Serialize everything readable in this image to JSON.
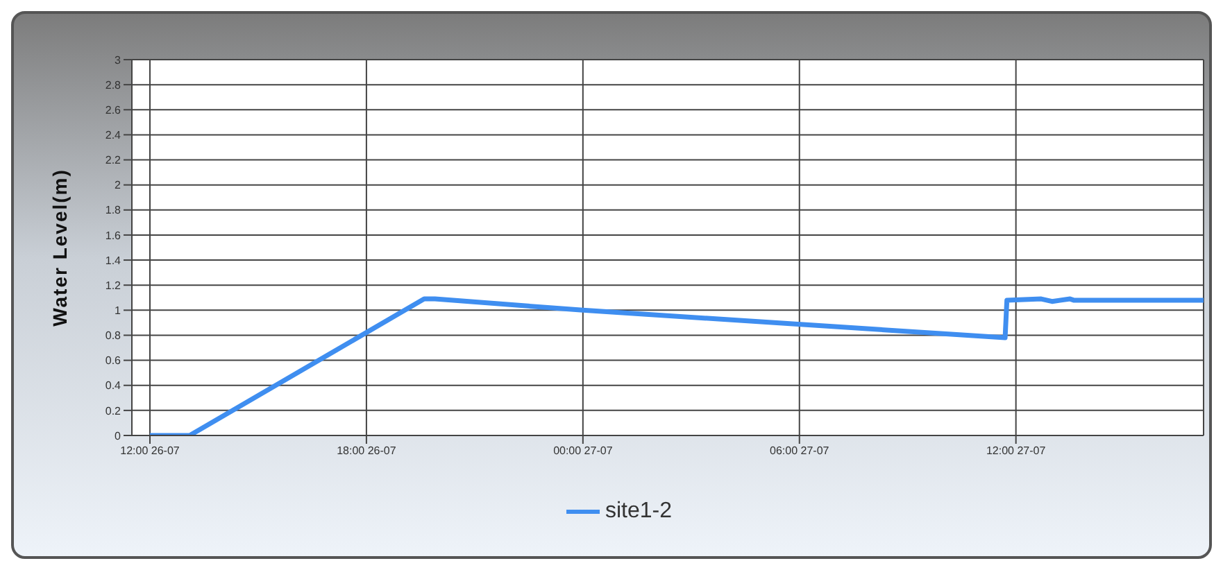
{
  "chart_data": {
    "type": "line",
    "ylabel": "Water Level(m)",
    "xlim": [
      "--07-26T11:30",
      "--07-27T17:12"
    ],
    "xticks": [
      {
        "value": "--07-26T12:00",
        "label": "12:00 26-07"
      },
      {
        "value": "--07-26T18:00",
        "label": "18:00 26-07"
      },
      {
        "value": "--07-27T00:00",
        "label": "00:00 27-07"
      },
      {
        "value": "--07-27T06:00",
        "label": "06:00 27-07"
      },
      {
        "value": "--07-27T12:00",
        "label": "12:00 27-07"
      }
    ],
    "ylim": [
      0,
      3
    ],
    "yticks": [
      0,
      0.2,
      0.4,
      0.6,
      0.8,
      1,
      1.2,
      1.4,
      1.6,
      1.8,
      2,
      2.2,
      2.4,
      2.6,
      2.8,
      3
    ],
    "grid": true,
    "legend": "bottom",
    "marker": "none",
    "line_style": "solid",
    "series": [
      {
        "name": "site1-2",
        "color": "#3f8ef0",
        "x": [
          "--07-26T12:00",
          "--07-26T13:06",
          "--07-26T19:36",
          "--07-26T19:54",
          "--07-27T00:00",
          "--07-27T11:42",
          "--07-27T11:45",
          "--07-27T12:42",
          "--07-27T13:00",
          "--07-27T13:30",
          "--07-27T13:36",
          "--07-27T17:12"
        ],
        "values": [
          0,
          0,
          1.09,
          1.09,
          1.0,
          0.78,
          1.08,
          1.09,
          1.07,
          1.09,
          1.08,
          1.08
        ]
      }
    ]
  }
}
